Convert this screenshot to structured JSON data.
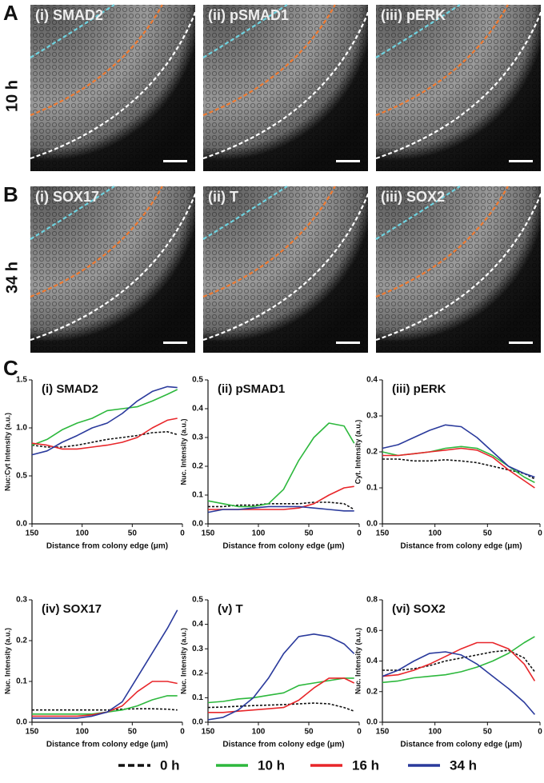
{
  "image_panels": [
    {
      "label": "A",
      "time": "10 h",
      "images": [
        "(i) SMAD2",
        "(ii) pSMAD1",
        "(iii) pERK"
      ]
    },
    {
      "label": "B",
      "time": "34 h",
      "images": [
        "(i) SOX17",
        "(ii) T",
        "(iii) SOX2"
      ]
    }
  ],
  "panel_c_label": "C",
  "legend": [
    {
      "name": "0 h",
      "color": "#111111",
      "dashed": true
    },
    {
      "name": "10 h",
      "color": "#2db83d",
      "dashed": false
    },
    {
      "name": "16 h",
      "color": "#e8262a",
      "dashed": false
    },
    {
      "name": "34 h",
      "color": "#2a3a9c",
      "dashed": false
    }
  ],
  "chart_data": [
    {
      "type": "line",
      "title": "(i) SMAD2",
      "xlabel": "Distance from colony edge (μm)",
      "ylabel": "Nuc:Cyt Intensity (a.u.)",
      "x": [
        150,
        135,
        120,
        105,
        90,
        75,
        60,
        45,
        30,
        15,
        5
      ],
      "xlim": [
        150,
        0
      ],
      "xticks": [
        150,
        100,
        50,
        0
      ],
      "ylim": [
        0,
        1.5
      ],
      "yticks": [
        {
          "value": 0,
          "label": "0.0"
        },
        0.5,
        {
          "value": 1,
          "label": "1.0"
        },
        1.5
      ],
      "series": [
        {
          "values": [
            0.82,
            0.8,
            0.8,
            0.82,
            0.85,
            0.88,
            0.9,
            0.92,
            0.95,
            0.96,
            0.93
          ]
        },
        {
          "values": [
            0.82,
            0.88,
            0.98,
            1.05,
            1.1,
            1.18,
            1.2,
            1.22,
            1.28,
            1.35,
            1.4
          ]
        },
        {
          "values": [
            0.84,
            0.82,
            0.78,
            0.78,
            0.8,
            0.82,
            0.85,
            0.9,
            1.0,
            1.08,
            1.1
          ]
        },
        {
          "values": [
            0.72,
            0.76,
            0.85,
            0.92,
            1.0,
            1.05,
            1.15,
            1.28,
            1.38,
            1.43,
            1.42
          ]
        }
      ]
    },
    {
      "type": "line",
      "title": "(ii) pSMAD1",
      "xlabel": "Distance from colony edge (μm)",
      "ylabel": "Nuc. Intensity (a.u.)",
      "x": [
        150,
        135,
        120,
        105,
        90,
        75,
        60,
        45,
        30,
        15,
        5
      ],
      "xlim": [
        150,
        0
      ],
      "xticks": [
        150,
        100,
        50,
        0
      ],
      "ylim": [
        0,
        0.5
      ],
      "yticks": [
        {
          "value": 0,
          "label": "0.0"
        },
        0.1,
        0.2,
        0.3,
        0.4,
        0.5
      ],
      "series": [
        {
          "values": [
            0.06,
            0.06,
            0.065,
            0.065,
            0.07,
            0.07,
            0.07,
            0.075,
            0.075,
            0.07,
            0.05
          ]
        },
        {
          "values": [
            0.08,
            0.07,
            0.06,
            0.06,
            0.07,
            0.12,
            0.22,
            0.3,
            0.35,
            0.34,
            0.28
          ]
        },
        {
          "values": [
            0.05,
            0.05,
            0.05,
            0.05,
            0.05,
            0.05,
            0.055,
            0.07,
            0.1,
            0.125,
            0.13
          ]
        },
        {
          "values": [
            0.04,
            0.05,
            0.05,
            0.055,
            0.06,
            0.06,
            0.06,
            0.055,
            0.05,
            0.045,
            0.045
          ]
        }
      ]
    },
    {
      "type": "line",
      "title": "(iii) pERK",
      "xlabel": "Distance from colony edge (μm)",
      "ylabel": "Cyt. Intensity (a.u.)",
      "x": [
        150,
        135,
        120,
        105,
        90,
        75,
        60,
        45,
        30,
        15,
        5
      ],
      "xlim": [
        150,
        0
      ],
      "xticks": [
        150,
        100,
        50,
        0
      ],
      "ylim": [
        0,
        0.4
      ],
      "yticks": [
        {
          "value": 0,
          "label": "0.0"
        },
        0.1,
        0.2,
        0.3,
        0.4
      ],
      "series": [
        {
          "values": [
            0.18,
            0.18,
            0.175,
            0.175,
            0.178,
            0.175,
            0.17,
            0.16,
            0.15,
            0.14,
            0.125
          ]
        },
        {
          "values": [
            0.2,
            0.19,
            0.195,
            0.2,
            0.21,
            0.215,
            0.21,
            0.19,
            0.16,
            0.13,
            0.115
          ]
        },
        {
          "values": [
            0.19,
            0.19,
            0.195,
            0.2,
            0.205,
            0.21,
            0.205,
            0.185,
            0.15,
            0.12,
            0.1
          ]
        },
        {
          "values": [
            0.21,
            0.22,
            0.24,
            0.26,
            0.275,
            0.27,
            0.24,
            0.2,
            0.16,
            0.14,
            0.13
          ]
        }
      ]
    },
    {
      "type": "line",
      "title": "(iv) SOX17",
      "xlabel": "Distance from colony edge (μm)",
      "ylabel": "Nuc. Intensity (a.u.)",
      "x": [
        150,
        135,
        120,
        105,
        90,
        75,
        60,
        45,
        30,
        15,
        5
      ],
      "xlim": [
        150,
        0
      ],
      "xticks": [
        150,
        100,
        50,
        0
      ],
      "ylim": [
        0,
        0.3
      ],
      "yticks": [
        {
          "value": 0,
          "label": "0.0"
        },
        0.1,
        0.2,
        0.3
      ],
      "series": [
        {
          "values": [
            0.03,
            0.03,
            0.03,
            0.03,
            0.03,
            0.03,
            0.032,
            0.033,
            0.033,
            0.032,
            0.03
          ]
        },
        {
          "values": [
            0.02,
            0.02,
            0.02,
            0.02,
            0.02,
            0.025,
            0.03,
            0.04,
            0.055,
            0.065,
            0.065
          ]
        },
        {
          "values": [
            0.015,
            0.015,
            0.015,
            0.015,
            0.018,
            0.025,
            0.04,
            0.075,
            0.1,
            0.1,
            0.095
          ]
        },
        {
          "values": [
            0.01,
            0.01,
            0.01,
            0.01,
            0.015,
            0.025,
            0.05,
            0.11,
            0.17,
            0.23,
            0.275
          ]
        }
      ]
    },
    {
      "type": "line",
      "title": "(v) T",
      "xlabel": "Distance from colony edge (μm)",
      "ylabel": "Nuc. Intensity (a.u.)",
      "x": [
        150,
        135,
        120,
        105,
        90,
        75,
        60,
        45,
        30,
        15,
        5
      ],
      "xlim": [
        150,
        0
      ],
      "xticks": [
        150,
        100,
        50,
        0
      ],
      "ylim": [
        0,
        0.5
      ],
      "yticks": [
        {
          "value": 0,
          "label": "0.0"
        },
        0.1,
        0.2,
        0.3,
        0.4,
        0.5
      ],
      "series": [
        {
          "values": [
            0.06,
            0.062,
            0.065,
            0.068,
            0.07,
            0.072,
            0.075,
            0.078,
            0.075,
            0.06,
            0.045
          ]
        },
        {
          "values": [
            0.08,
            0.085,
            0.095,
            0.1,
            0.11,
            0.12,
            0.15,
            0.16,
            0.17,
            0.18,
            0.18
          ]
        },
        {
          "values": [
            0.04,
            0.04,
            0.045,
            0.05,
            0.055,
            0.06,
            0.09,
            0.14,
            0.18,
            0.18,
            0.16
          ]
        },
        {
          "values": [
            0.01,
            0.02,
            0.05,
            0.1,
            0.18,
            0.28,
            0.35,
            0.36,
            0.35,
            0.32,
            0.28
          ]
        }
      ]
    },
    {
      "type": "line",
      "title": "(vi) SOX2",
      "xlabel": "Distance from colony edge (μm)",
      "ylabel": "Nuc. Intensity (a.u.)",
      "x": [
        150,
        135,
        120,
        105,
        90,
        75,
        60,
        45,
        30,
        15,
        5
      ],
      "xlim": [
        150,
        0
      ],
      "xticks": [
        150,
        100,
        50,
        0
      ],
      "ylim": [
        0,
        0.8
      ],
      "yticks": [
        {
          "value": 0,
          "label": "0.0"
        },
        0.2,
        0.4,
        0.6,
        0.8
      ],
      "series": [
        {
          "values": [
            0.34,
            0.34,
            0.35,
            0.37,
            0.4,
            0.42,
            0.44,
            0.46,
            0.47,
            0.42,
            0.33
          ]
        },
        {
          "values": [
            0.26,
            0.27,
            0.29,
            0.3,
            0.31,
            0.33,
            0.36,
            0.4,
            0.45,
            0.52,
            0.56
          ]
        },
        {
          "values": [
            0.3,
            0.31,
            0.34,
            0.38,
            0.43,
            0.48,
            0.52,
            0.52,
            0.48,
            0.38,
            0.27
          ]
        },
        {
          "values": [
            0.3,
            0.34,
            0.4,
            0.45,
            0.46,
            0.44,
            0.38,
            0.3,
            0.22,
            0.13,
            0.05
          ]
        }
      ]
    }
  ]
}
